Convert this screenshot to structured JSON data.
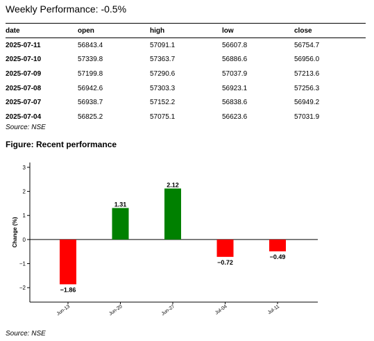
{
  "header": {
    "title": "Weekly Performance: -0.5%"
  },
  "table": {
    "columns": [
      "date",
      "open",
      "high",
      "low",
      "close"
    ],
    "rows": [
      [
        "2025-07-11",
        "56843.4",
        "57091.1",
        "56607.8",
        "56754.7"
      ],
      [
        "2025-07-10",
        "57339.8",
        "57363.7",
        "56886.6",
        "56956.0"
      ],
      [
        "2025-07-09",
        "57199.8",
        "57290.6",
        "57037.9",
        "57213.6"
      ],
      [
        "2025-07-08",
        "56942.6",
        "57303.3",
        "56923.1",
        "57256.3"
      ],
      [
        "2025-07-07",
        "56938.7",
        "57152.2",
        "56838.6",
        "56949.2"
      ],
      [
        "2025-07-04",
        "56825.2",
        "57075.1",
        "56623.6",
        "57031.9"
      ]
    ],
    "source": "Source: NSE"
  },
  "figure": {
    "title": "Figure: Recent performance",
    "source": "Source: NSE"
  },
  "chart_data": {
    "type": "bar",
    "categories": [
      "Jun-13",
      "Jun-20",
      "Jun-27",
      "Jul-04",
      "Jul-11"
    ],
    "values": [
      -1.86,
      1.31,
      2.12,
      -0.72,
      -0.49
    ],
    "labels": [
      "−1.86",
      "1.31",
      "2.12",
      "−0.72",
      "−0.49"
    ],
    "ylabel": "Change (%)",
    "xlabel": "",
    "ylim": [
      -2.6,
      3.2
    ],
    "yticks": [
      -2,
      -1,
      0,
      1,
      2,
      3
    ],
    "ytick_labels": [
      "−2",
      "−1",
      "0",
      "1",
      "2",
      "3"
    ],
    "colors": {
      "positive": "#008000",
      "negative": "#ff0000",
      "zero_line": "#000000"
    },
    "grid": false,
    "legend": "none"
  }
}
